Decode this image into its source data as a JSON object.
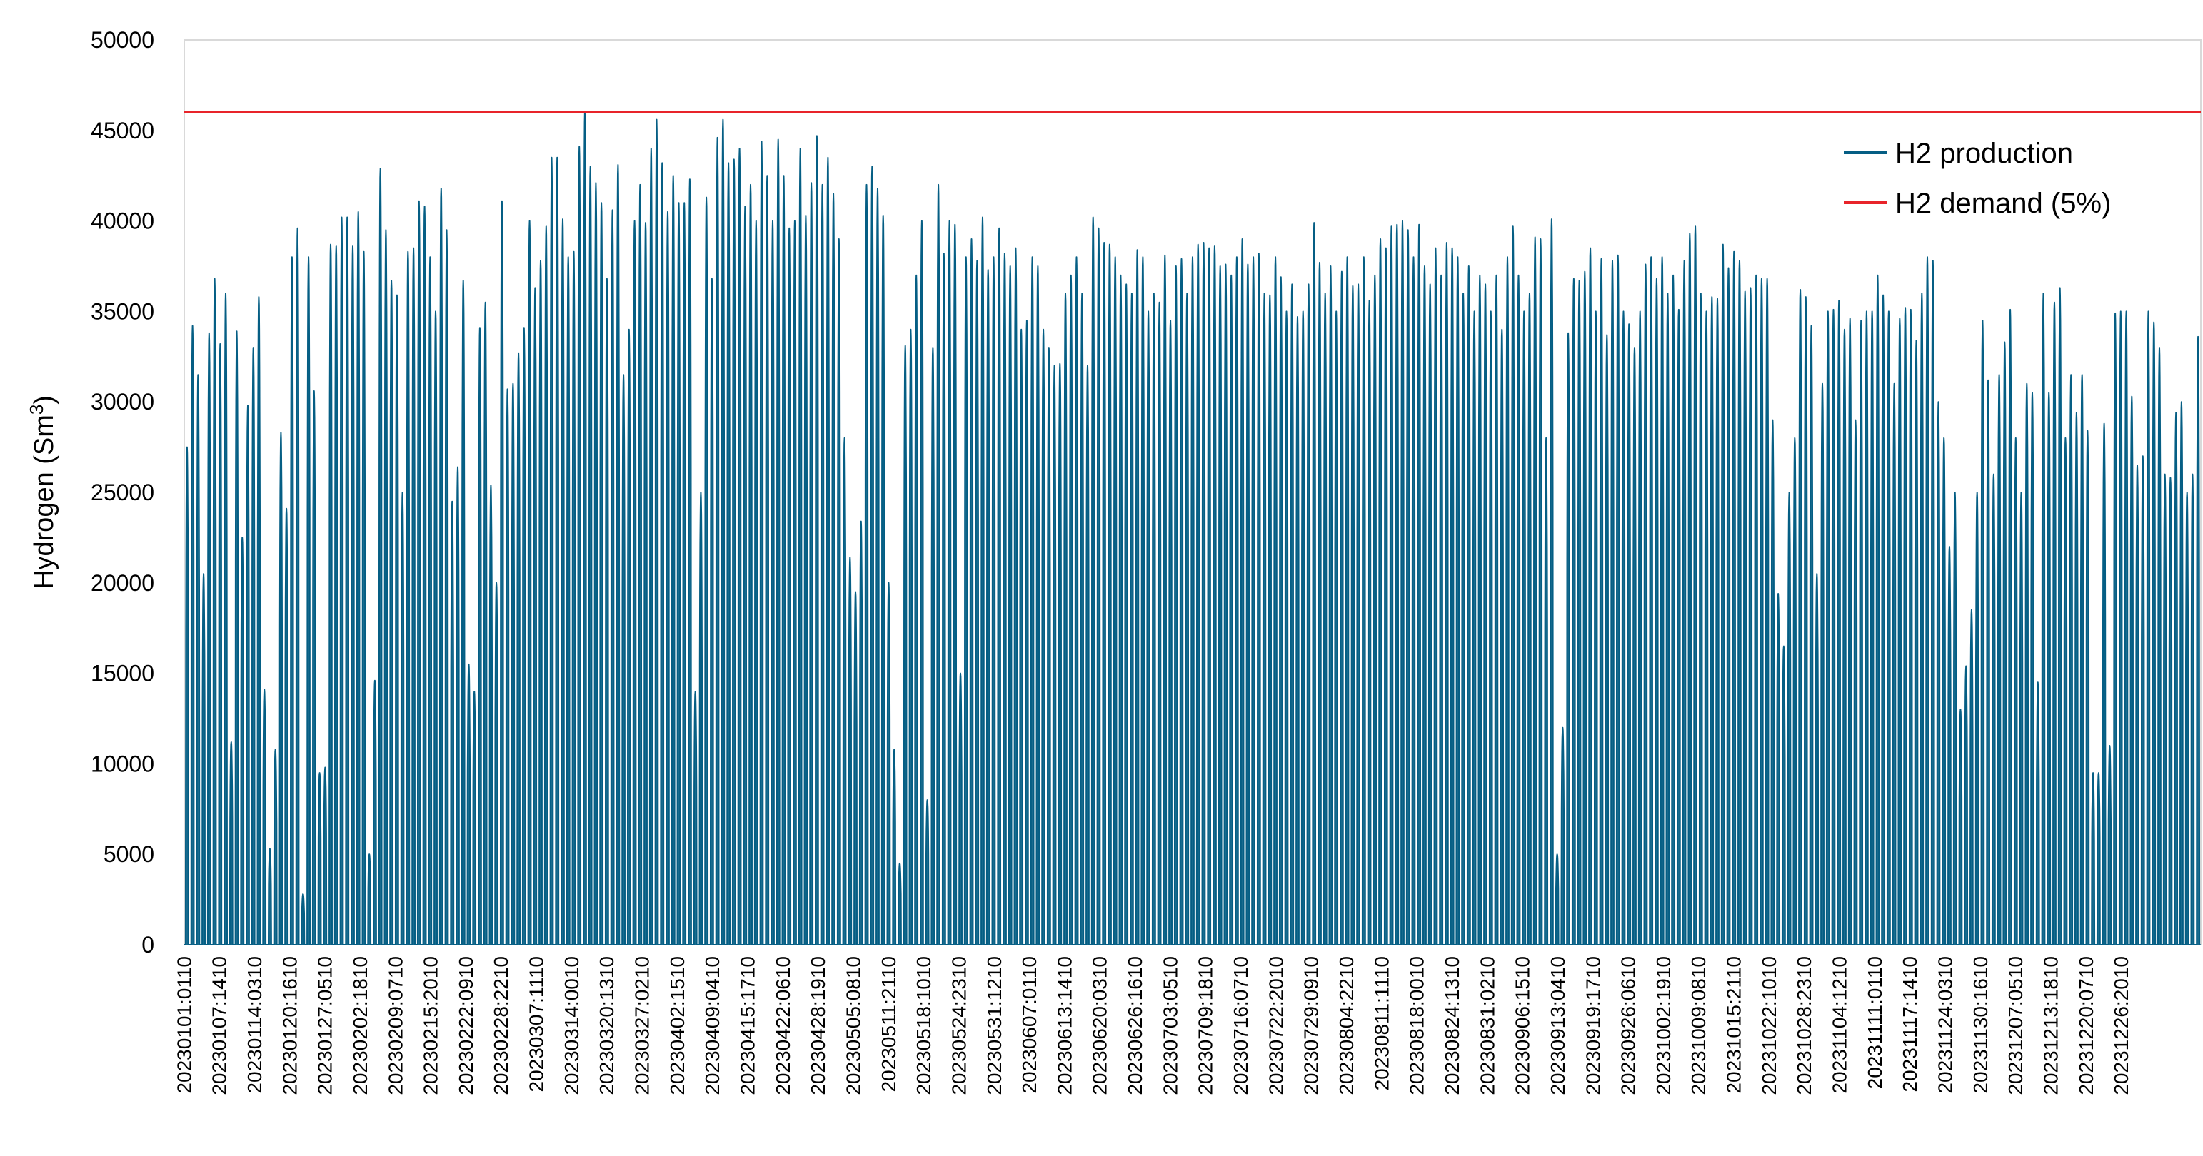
{
  "chart_data": {
    "type": "line",
    "title": "",
    "xlabel": "",
    "ylabel": "Hydrogen (Sm³)",
    "ylabel_parts": {
      "base": "Hydrogen (Sm",
      "sup": "3",
      "close": ")"
    },
    "ylim": [
      0,
      50000
    ],
    "yticks": [
      0,
      5000,
      10000,
      15000,
      20000,
      25000,
      30000,
      35000,
      40000,
      45000,
      50000
    ],
    "grid": false,
    "legend_position": "top-right",
    "x_start": "2023-01-01",
    "x_end": "2023-12-31",
    "xtick_labels": [
      "20230101:0110",
      "20230107:1410",
      "20230114:0310",
      "20230120:1610",
      "20230127:0510",
      "20230202:1810",
      "20230209:0710",
      "20230215:2010",
      "20230222:0910",
      "20230228:2210",
      "20230307:1110",
      "20230314:0010",
      "20230320:1310",
      "20230327:0210",
      "20230402:1510",
      "20230409:0410",
      "20230415:1710",
      "20230422:0610",
      "20230428:1910",
      "20230505:0810",
      "20230511:2110",
      "20230518:1010",
      "20230524:2310",
      "20230531:1210",
      "20230607:0110",
      "20230613:1410",
      "20230620:0310",
      "20230626:1610",
      "20230703:0510",
      "20230709:1810",
      "20230716:0710",
      "20230722:2010",
      "20230729:0910",
      "20230804:2210",
      "20230811:1110",
      "20230818:0010",
      "20230824:1310",
      "20230831:0210",
      "20230906:1510",
      "20230913:0410",
      "20230919:1710",
      "20230926:0610",
      "20231002:1910",
      "20231009:0810",
      "20231015:2110",
      "20231022:1010",
      "20231028:2310",
      "20231104:1210",
      "20231111:0110",
      "20231117:1410",
      "20231124:0310",
      "20231130:1610",
      "20231207:0510",
      "20231213:1810",
      "20231220:0710",
      "20231226:2010"
    ],
    "series": [
      {
        "name": "H2 production",
        "color": "#055E84",
        "description_of_values": "daily peak hydrogen production (Sm3); hourly profile falls to 0 each night",
        "daily_peaks": [
          27500,
          34200,
          31500,
          20500,
          33800,
          36800,
          33200,
          36000,
          11200,
          33900,
          22500,
          29800,
          33000,
          35800,
          37000,
          14100,
          5300,
          10800,
          28300,
          24100,
          38000,
          39600,
          2800,
          38000,
          30600,
          9500,
          9800,
          38700,
          39400,
          38600,
          40200,
          40200,
          38600,
          40500,
          38300,
          5000,
          14600,
          42900,
          39500,
          36700,
          35900,
          25000,
          39400,
          38300,
          38500,
          41100,
          40800,
          38000,
          35000,
          41800,
          39500,
          24500,
          26400,
          36700,
          15500,
          14000,
          12000,
          34100,
          35500,
          25400,
          20000,
          41100,
          30700,
          31000,
          32700,
          34100,
          40000,
          36300,
          37800,
          39700,
          41600,
          43500,
          43500,
          40100,
          38000,
          38300,
          44100,
          46000,
          43000,
          42100,
          41000,
          36800,
          40600,
          43100,
          42100,
          31500,
          34000,
          40000,
          42000,
          39900,
          44000,
          45600,
          43200,
          40500,
          42500,
          41000,
          41000,
          42300,
          6000,
          14000,
          25000,
          41300,
          36800,
          44600,
          45600,
          43200,
          43400,
          44000,
          40800,
          42000,
          40000,
          44400,
          43300,
          42500,
          40000,
          44500,
          42500,
          39600,
          40000,
          44000,
          40300,
          42100,
          44700,
          42000,
          43500,
          41500,
          39100,
          39000,
          28000,
          21400,
          19500,
          23400,
          42000,
          43000,
          41800,
          40300,
          20000,
          10800,
          4500,
          33100,
          33300,
          34000,
          37000,
          40000,
          8000,
          33000,
          42000,
          38200,
          40000,
          39800,
          15000,
          38000,
          39000,
          37800,
          37800,
          40200,
          37300,
          38000,
          39600,
          38200,
          37500,
          38500,
          34000,
          34500,
          38000,
          37500,
          34000,
          33000,
          30000,
          32000,
          32100,
          36000,
          37000,
          38000,
          36000,
          32000,
          40200,
          39600,
          38800,
          38700,
          38000,
          37000,
          36200,
          36500,
          36000,
          38400,
          38000,
          35000,
          36000,
          35500,
          38100,
          34500,
          37500,
          37900,
          36000,
          38000,
          38500,
          38700,
          38800,
          38500,
          38600,
          37500,
          37600,
          37000,
          38000,
          39000,
          37600,
          38000,
          38200,
          36000,
          38000,
          35900,
          38000,
          36900,
          35000,
          36500,
          34700,
          35000,
          36500,
          39900,
          37700,
          36000,
          37500,
          35000,
          38000,
          37200,
          38000,
          36400,
          36500,
          38000,
          35600,
          37000,
          39000,
          38500,
          39700,
          39800,
          40000,
          39500,
          38000,
          38000,
          39800,
          37500,
          36500,
          38500,
          37000,
          38800,
          38500,
          38000,
          36000,
          37500,
          35000,
          37000,
          36700,
          36500,
          35000,
          37000,
          34000,
          38000,
          39700,
          37000,
          35000,
          36000,
          39100,
          39000,
          28000,
          40100,
          38000,
          5000,
          12000,
          33800,
          36800,
          36700,
          37200,
          38500,
          35000,
          37900,
          33700,
          37800,
          38100,
          35000,
          37000,
          34300,
          33000,
          35000,
          37600,
          38000,
          36800,
          38000,
          36000,
          37000,
          35100,
          37800,
          39300,
          39700,
          37800,
          36000,
          35000,
          35800,
          35700,
          38700,
          37400,
          38300,
          37800,
          36100,
          36300,
          37000,
          36800,
          36800,
          34300,
          29000,
          19400,
          16500,
          25000,
          28000,
          36200,
          35800,
          34200,
          20500,
          31000,
          35000,
          35100,
          35600,
          33300,
          34000,
          34600,
          29000,
          34500,
          35000,
          35000,
          37000,
          35900,
          35000,
          31000,
          34600,
          35200,
          35100,
          35700,
          33400,
          36000,
          38000,
          37800,
          30000,
          28000,
          22000,
          25000,
          13000,
          15400,
          18500,
          25000,
          34500,
          26000,
          31200,
          26000,
          31500,
          33300,
          35100,
          28000,
          25000,
          31000,
          30500,
          14500,
          36000,
          30500,
          35500,
          36100,
          36300,
          28000,
          31500,
          29400,
          31500,
          28400,
          9500,
          9500,
          28800,
          11000,
          34900,
          35000,
          35000,
          26000,
          30300,
          26500,
          27000,
          35000,
          34400,
          33000,
          26000,
          25800,
          29400,
          30000,
          25000,
          26000,
          33600,
          24800
        ]
      },
      {
        "name": "H2 demand (5%)",
        "color": "#E8242A",
        "value": 46000
      }
    ]
  }
}
